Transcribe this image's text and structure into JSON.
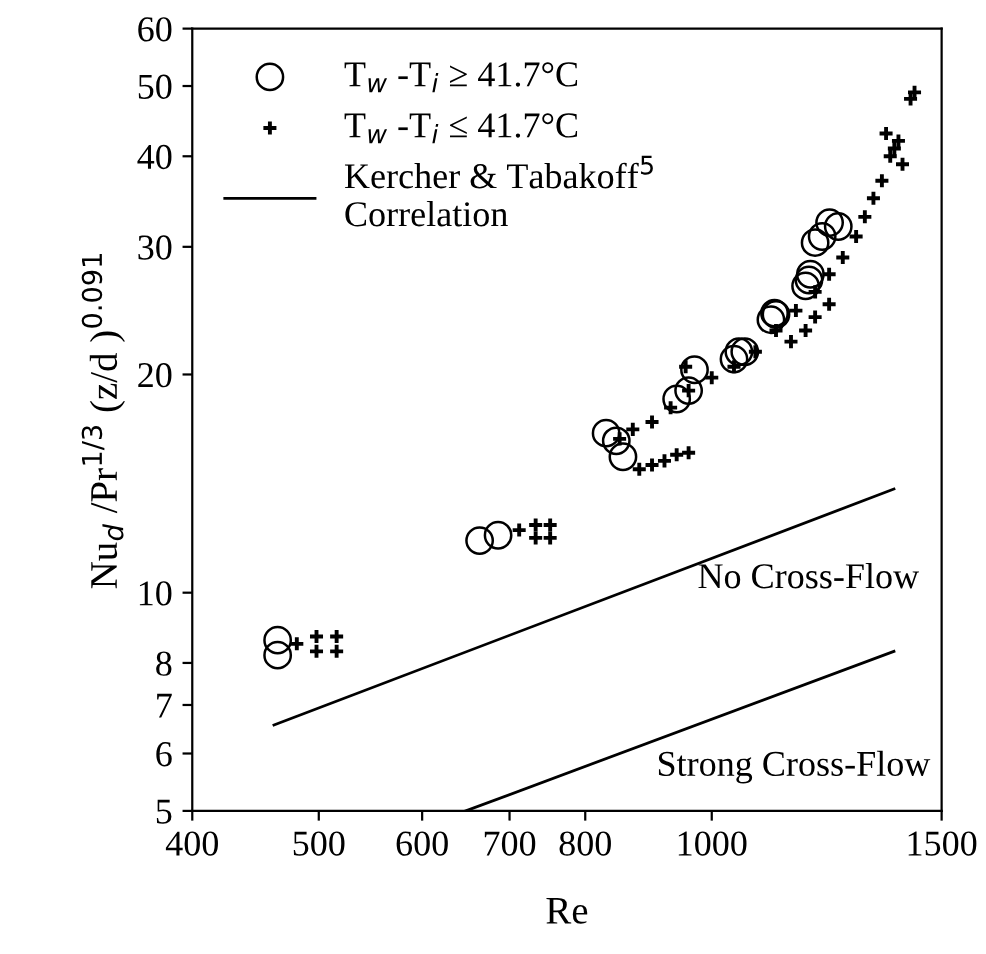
{
  "chart_data": {
    "type": "scatter",
    "xlabel": "Re",
    "ylabel": "Nu$_{d}$ /Pr$^{1/3}$ (z/d )$^{0.091}$",
    "log": "xy",
    "xlim": [
      400,
      1500
    ],
    "ylim": [
      5,
      60
    ],
    "xticks": [
      400,
      500,
      600,
      700,
      800,
      1000,
      1500
    ],
    "yticks": [
      5,
      6,
      7,
      8,
      10,
      20,
      30,
      40,
      50,
      60
    ],
    "grid": false,
    "legend": "top left",
    "annotations": [
      "No Cross-Flow",
      "Strong Cross-Flow"
    ],
    "series": [
      {
        "name": "T$_{w}$ -T$_{i}$ ≥ 41.7°C",
        "marker": "circle",
        "color": "#000000",
        "x": [
          465,
          465,
          664,
          686,
          830,
          845,
          855,
          940,
          960,
          970,
          1040,
          1049,
          1060,
          1110,
          1117,
          1120,
          1180,
          1187,
          1190,
          1200,
          1215,
          1231,
          1250
        ],
        "values": [
          8.6,
          8.2,
          11.8,
          12.0,
          16.6,
          16.2,
          15.4,
          18.5,
          19.0,
          20.3,
          21.0,
          21.5,
          21.5,
          23.8,
          24.3,
          24.2,
          26.5,
          27.0,
          27.5,
          30.4,
          31.0,
          32.4,
          32.0
        ]
      },
      {
        "name": "T$_{w}$ -T$_{i}$ ≤ 41.7°C",
        "marker": "cross",
        "color": "#000000",
        "x": [
          481,
          498,
          498,
          516,
          516,
          712,
          733,
          733,
          752,
          752,
          850,
          870,
          880,
          900,
          900,
          920,
          930,
          940,
          955,
          960,
          960,
          1000,
          1040,
          1080,
          1120,
          1150,
          1160,
          1180,
          1200,
          1200,
          1230,
          1230,
          1260,
          1290,
          1310,
          1330,
          1350,
          1360,
          1370,
          1380,
          1390,
          1400,
          1420,
          1430
        ],
        "values": [
          8.5,
          8.7,
          8.3,
          8.7,
          8.3,
          12.2,
          12.4,
          11.9,
          12.4,
          11.9,
          16.3,
          16.8,
          14.8,
          17.2,
          15.0,
          15.2,
          18.0,
          15.5,
          20.5,
          19.0,
          15.6,
          19.8,
          20.5,
          21.5,
          23.0,
          22.2,
          24.5,
          23.0,
          26.0,
          24.0,
          27.5,
          25.0,
          29.0,
          31.0,
          33.0,
          35.0,
          37.0,
          43.0,
          40.0,
          41.0,
          42.0,
          39.0,
          48.0,
          49.0
        ]
      },
      {
        "name": "Kercher & Tabakoff$^{5}$\nCorrelation",
        "type": "line",
        "line_style": "solid",
        "color": "#000000",
        "x": [
          462,
          1379
        ],
        "values": [
          6.57,
          13.9
        ]
      },
      {
        "type": "line",
        "line_style": "solid",
        "color": "#000000",
        "x": [
          648,
          1379
        ],
        "values": [
          5.0,
          8.3
        ]
      }
    ]
  }
}
